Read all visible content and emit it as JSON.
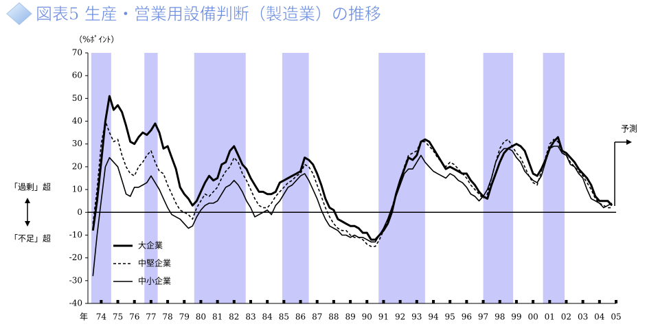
{
  "chart_data": {
    "type": "line",
    "title": "図表5 生産・営業用設備判断（製造業）の推移",
    "y_unit": "（%ﾎﾟｲﾝﾄ）",
    "x_label": "年",
    "annotations": {
      "upper": "「過剰」超",
      "lower": "「不足」超",
      "forecast": "予測"
    },
    "x": [
      1974,
      1974.25,
      1974.5,
      1974.75,
      1975,
      1975.25,
      1975.5,
      1975.75,
      1976,
      1976.25,
      1976.5,
      1976.75,
      1977,
      1977.25,
      1977.5,
      1977.75,
      1978,
      1978.25,
      1978.5,
      1978.75,
      1979,
      1979.25,
      1979.5,
      1979.75,
      1980,
      1980.25,
      1980.5,
      1980.75,
      1981,
      1981.25,
      1981.5,
      1981.75,
      1982,
      1982.25,
      1982.5,
      1982.75,
      1983,
      1983.25,
      1983.5,
      1983.75,
      1984,
      1984.25,
      1984.5,
      1984.75,
      1985,
      1985.25,
      1985.5,
      1985.75,
      1986,
      1986.25,
      1986.5,
      1986.75,
      1987,
      1987.25,
      1987.5,
      1987.75,
      1988,
      1988.25,
      1988.5,
      1988.75,
      1989,
      1989.25,
      1989.5,
      1989.75,
      1990,
      1990.25,
      1990.5,
      1990.75,
      1991,
      1991.25,
      1991.5,
      1991.75,
      1992,
      1992.25,
      1992.5,
      1992.75,
      1993,
      1993.25,
      1993.5,
      1993.75,
      1994,
      1994.25,
      1994.5,
      1994.75,
      1995,
      1995.25,
      1995.5,
      1995.75,
      1996,
      1996.25,
      1996.5,
      1996.75,
      1997,
      1997.25,
      1997.5,
      1997.75,
      1998,
      1998.25,
      1998.5,
      1998.75,
      1999,
      1999.25,
      1999.5,
      1999.75,
      2000,
      2000.25,
      2000.5,
      2000.75,
      2001,
      2001.25,
      2001.5,
      2001.75,
      2002,
      2002.25,
      2002.5,
      2002.75,
      2003,
      2003.25,
      2003.5,
      2003.75,
      2004,
      2004.25,
      2004.5,
      2004.75,
      2005,
      2005.25
    ],
    "series": [
      {
        "name": "大企業",
        "color": "#000000",
        "line_width": 3,
        "dash": "solid",
        "values": [
          -8,
          5,
          22,
          40,
          51,
          45,
          47,
          44,
          38,
          31,
          30,
          33,
          35,
          34,
          36,
          39,
          35,
          28,
          29,
          24,
          19,
          11,
          8,
          6,
          3,
          5,
          9,
          13,
          16,
          14,
          15,
          21,
          22,
          27,
          29,
          25,
          21,
          19,
          15,
          12,
          9,
          9,
          8,
          8,
          9,
          13,
          14,
          15,
          16,
          17,
          18,
          24,
          23,
          21,
          17,
          12,
          6,
          2,
          1,
          -3,
          -4,
          -5,
          -6,
          -6,
          -7,
          -9,
          -9,
          -12,
          -12,
          -10,
          -8,
          -5,
          0,
          8,
          14,
          19,
          24,
          23,
          25,
          31,
          32,
          31,
          28,
          25,
          22,
          19,
          20,
          19,
          18,
          17,
          17,
          14,
          12,
          9,
          7,
          6,
          12,
          17,
          22,
          26,
          28,
          29,
          30,
          29,
          27,
          22,
          17,
          16,
          19,
          23,
          28,
          31,
          33,
          27,
          26,
          24,
          22,
          19,
          17,
          15,
          12,
          7,
          5,
          5,
          5,
          3
        ]
      },
      {
        "name": "中堅企業",
        "color": "#000000",
        "line_width": 1.6,
        "dash": "dashed",
        "values": [
          -5,
          10,
          30,
          40,
          35,
          31,
          32,
          25,
          20,
          17,
          16,
          20,
          22,
          25,
          27,
          22,
          18,
          17,
          12,
          8,
          4,
          1,
          0,
          -1,
          -3,
          2,
          5,
          8,
          7,
          9,
          11,
          15,
          18,
          20,
          24,
          22,
          17,
          14,
          10,
          6,
          3,
          2,
          2,
          4,
          7,
          9,
          11,
          13,
          14,
          16,
          17,
          21,
          20,
          17,
          12,
          7,
          2,
          -2,
          -5,
          -7,
          -8,
          -8,
          -10,
          -11,
          -11,
          -12,
          -14,
          -15,
          -15,
          -12,
          -8,
          -4,
          2,
          8,
          14,
          20,
          25,
          26,
          27,
          31,
          31,
          29,
          27,
          24,
          22,
          20,
          22,
          21,
          19,
          17,
          15,
          12,
          10,
          8,
          6,
          8,
          15,
          22,
          28,
          31,
          32,
          29,
          26,
          24,
          20,
          16,
          13,
          12,
          18,
          24,
          30,
          32,
          31,
          26,
          25,
          22,
          20,
          18,
          16,
          13,
          10,
          6,
          4,
          3,
          2,
          2
        ]
      },
      {
        "name": "中小企業",
        "color": "#000000",
        "line_width": 1.6,
        "dash": "solid",
        "values": [
          -28,
          -10,
          5,
          20,
          24,
          22,
          20,
          14,
          8,
          7,
          11,
          11,
          12,
          13,
          16,
          13,
          10,
          6,
          2,
          -1,
          -2,
          -3,
          -5,
          -7,
          -6,
          -2,
          1,
          3,
          4,
          4,
          5,
          8,
          11,
          12,
          14,
          12,
          9,
          5,
          2,
          -2,
          -1,
          0,
          1,
          -1,
          3,
          5,
          8,
          11,
          12,
          14,
          16,
          17,
          14,
          10,
          6,
          1,
          -3,
          -6,
          -7,
          -8,
          -10,
          -10,
          -11,
          -10,
          -11,
          -11,
          -12,
          -13,
          -13,
          -10,
          -7,
          -3,
          2,
          7,
          12,
          17,
          19,
          19,
          22,
          25,
          22,
          20,
          18,
          17,
          16,
          15,
          17,
          16,
          14,
          13,
          11,
          8,
          7,
          5,
          7,
          10,
          15,
          22,
          26,
          28,
          28,
          27,
          24,
          22,
          18,
          16,
          14,
          13,
          16,
          22,
          28,
          29,
          29,
          26,
          25,
          21,
          20,
          17,
          15,
          10,
          6,
          5,
          4,
          2,
          3,
          4
        ]
      }
    ],
    "shaded_regions": [
      [
        1973.9,
        1975.1
      ],
      [
        1977.1,
        1977.9
      ],
      [
        1980.1,
        1983.2
      ],
      [
        1985.4,
        1987.0
      ],
      [
        1991.2,
        1994.0
      ],
      [
        1997.5,
        1999.3
      ],
      [
        2001.1,
        2002.4
      ]
    ],
    "shade_color": "#c8c8fa",
    "xlim": [
      1973.7,
      2005.5
    ],
    "xticks": [
      {
        "value": 1974.5,
        "label": "74"
      },
      {
        "value": 1975.5,
        "label": "75"
      },
      {
        "value": 1976.5,
        "label": "76"
      },
      {
        "value": 1977.5,
        "label": "77"
      },
      {
        "value": 1978.5,
        "label": "78"
      },
      {
        "value": 1979.5,
        "label": "79"
      },
      {
        "value": 1980.5,
        "label": "80"
      },
      {
        "value": 1981.5,
        "label": "81"
      },
      {
        "value": 1982.5,
        "label": "82"
      },
      {
        "value": 1983.5,
        "label": "83"
      },
      {
        "value": 1984.5,
        "label": "84"
      },
      {
        "value": 1985.5,
        "label": "85"
      },
      {
        "value": 1986.5,
        "label": "86"
      },
      {
        "value": 1987.5,
        "label": "87"
      },
      {
        "value": 1988.5,
        "label": "88"
      },
      {
        "value": 1989.5,
        "label": "89"
      },
      {
        "value": 1990.5,
        "label": "90"
      },
      {
        "value": 1991.5,
        "label": "91"
      },
      {
        "value": 1992.5,
        "label": "92"
      },
      {
        "value": 1993.5,
        "label": "93"
      },
      {
        "value": 1994.5,
        "label": "94"
      },
      {
        "value": 1995.5,
        "label": "95"
      },
      {
        "value": 1996.5,
        "label": "96"
      },
      {
        "value": 1997.5,
        "label": "97"
      },
      {
        "value": 1998.5,
        "label": "98"
      },
      {
        "value": 1999.5,
        "label": "99"
      },
      {
        "value": 2000.5,
        "label": "00"
      },
      {
        "value": 2001.5,
        "label": "01"
      },
      {
        "value": 2002.5,
        "label": "02"
      },
      {
        "value": 2003.5,
        "label": "03"
      },
      {
        "value": 2004.5,
        "label": "04"
      },
      {
        "value": 2005.5,
        "label": "05"
      }
    ],
    "ylim": [
      -40,
      70
    ],
    "yticks": [
      -40,
      -30,
      -20,
      -10,
      0,
      10,
      20,
      30,
      40,
      50,
      60,
      70
    ],
    "legend": "lower left"
  }
}
